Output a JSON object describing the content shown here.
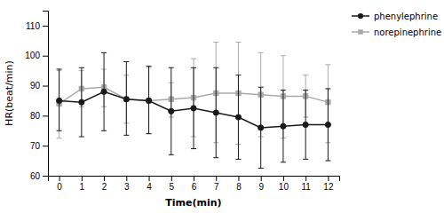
{
  "chart_data": {
    "type": "line",
    "xlabel": "Time(min)",
    "ylabel": "HR(beat/min)",
    "x": [
      0,
      1,
      2,
      3,
      4,
      5,
      6,
      7,
      8,
      9,
      10,
      11,
      12
    ],
    "xlim": [
      -0.5,
      12.5
    ],
    "xticks": [
      0,
      1,
      2,
      3,
      4,
      5,
      6,
      7,
      8,
      9,
      10,
      11,
      12
    ],
    "ylim": [
      60,
      115
    ],
    "yticks": [
      60,
      70,
      80,
      90,
      100,
      110
    ],
    "grid": false,
    "legend": "right",
    "series": [
      {
        "name": "phenylephrine",
        "color": "#1a1a1a",
        "marker": "circle",
        "line_style": "solid",
        "values": [
          85,
          84.5,
          88,
          85.5,
          85,
          81.5,
          82.5,
          81,
          79.5,
          76,
          76.5,
          77,
          77
        ],
        "lower": [
          75,
          73,
          75,
          73.5,
          74,
          67,
          69,
          66,
          65.5,
          62.5,
          64.5,
          65.5,
          65
        ],
        "upper": [
          95.5,
          96,
          101,
          98,
          96.5,
          96,
          96,
          96,
          93.5,
          89.5,
          88.5,
          88.5,
          89
        ]
      },
      {
        "name": "norepinephrine",
        "color": "#aaaaaa",
        "marker": "square",
        "line_style": "solid",
        "values": [
          84,
          89,
          89.5,
          85.5,
          85,
          85.5,
          86,
          87.5,
          87.5,
          87,
          86.5,
          86.5,
          84.5
        ],
        "lower": [
          72.5,
          83,
          83,
          77.5,
          74,
          79.5,
          73,
          71,
          70.5,
          73,
          72.5,
          79.5,
          71
        ],
        "upper": [
          95,
          95,
          95.5,
          93.5,
          96,
          91,
          99,
          104.5,
          104.5,
          101,
          100,
          93.5,
          97
        ]
      }
    ]
  }
}
